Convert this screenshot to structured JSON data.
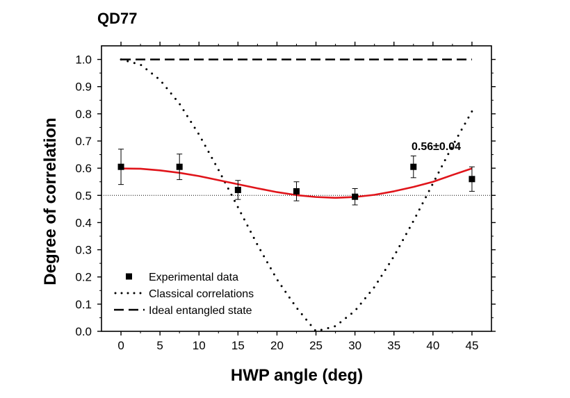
{
  "title": "QD77",
  "chart_data": {
    "type": "scatter",
    "title": "QD77",
    "xlabel": "HWP angle (deg)",
    "ylabel": "Degree of correlation",
    "xlim": [
      -2.5,
      47.5
    ],
    "ylim": [
      0.0,
      1.05
    ],
    "xticks": [
      0,
      5,
      10,
      15,
      20,
      25,
      30,
      35,
      40,
      45
    ],
    "yticks": [
      0.0,
      0.1,
      0.2,
      0.3,
      0.4,
      0.5,
      0.6,
      0.7,
      0.8,
      0.9,
      1.0
    ],
    "xtick_labels": [
      "0",
      "5",
      "10",
      "15",
      "20",
      "25",
      "30",
      "35",
      "40",
      "45"
    ],
    "ytick_labels": [
      "0.0",
      "0.1",
      "0.2",
      "0.3",
      "0.4",
      "0.5",
      "0.6",
      "0.7",
      "0.8",
      "0.9",
      "1.0"
    ],
    "grid": false,
    "legend_position": "bottom-left",
    "annotation": "0.56±0.04",
    "reference_line_y": 0.5,
    "series": [
      {
        "name": "Experimental data",
        "kind": "points_with_error_bars",
        "color": "#000000",
        "x": [
          0,
          7.5,
          15,
          22.5,
          30,
          37.5,
          45
        ],
        "y": [
          0.605,
          0.605,
          0.52,
          0.515,
          0.495,
          0.605,
          0.56
        ],
        "err": [
          0.065,
          0.047,
          0.035,
          0.035,
          0.03,
          0.04,
          0.045
        ]
      },
      {
        "name": "Classical correlations",
        "kind": "dotted_line",
        "color": "#000000",
        "x": [
          0,
          2.5,
          5,
          7.5,
          10,
          12.5,
          15,
          17.5,
          20,
          22.5,
          25,
          27.5,
          30,
          32.5,
          35,
          37.5,
          40,
          42.5,
          45
        ],
        "y": [
          1.0,
          0.981,
          0.925,
          0.837,
          0.724,
          0.594,
          0.456,
          0.318,
          0.191,
          0.087,
          0.0,
          0.019,
          0.075,
          0.163,
          0.276,
          0.406,
          0.544,
          0.682,
          0.809
        ]
      },
      {
        "name": "Ideal entangled state",
        "kind": "dashed_line",
        "color": "#000000",
        "x": [
          0,
          45
        ],
        "y": [
          1.0,
          1.0
        ]
      },
      {
        "name": "",
        "kind": "fit_curve",
        "color": "#e0141a",
        "x": [
          0,
          2.5,
          5,
          7.5,
          10,
          12.5,
          15,
          17.5,
          20,
          22.5,
          25,
          27.5,
          30,
          32.5,
          35,
          37.5,
          40,
          42.5,
          45
        ],
        "y": [
          0.599,
          0.598,
          0.592,
          0.583,
          0.571,
          0.556,
          0.541,
          0.526,
          0.512,
          0.501,
          0.494,
          0.491,
          0.494,
          0.502,
          0.515,
          0.531,
          0.55,
          0.575,
          0.599
        ]
      }
    ]
  }
}
